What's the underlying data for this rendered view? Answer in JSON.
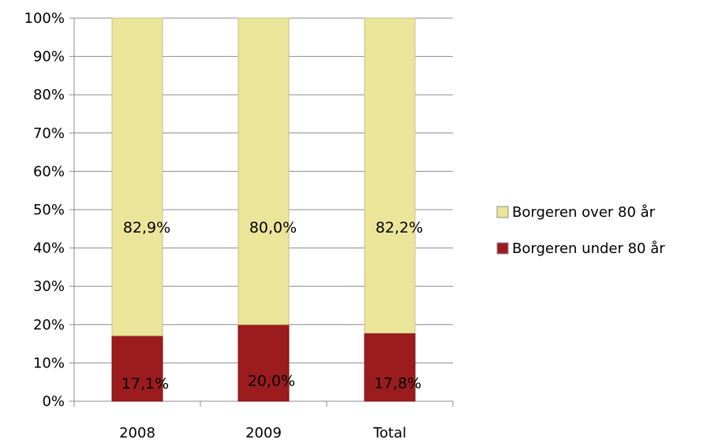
{
  "chart_data": {
    "type": "bar",
    "stacked": true,
    "percent": true,
    "categories": [
      "2008",
      "2009",
      "Total"
    ],
    "series": [
      {
        "name": "Borgeren under 80 år",
        "values": [
          17.1,
          20.0,
          17.8
        ],
        "labels": [
          "17,1%",
          "20,0%",
          "17,8%"
        ],
        "color": "#9B1B1E"
      },
      {
        "name": "Borgeren over 80 år",
        "values": [
          82.9,
          80.0,
          82.2
        ],
        "labels": [
          "82,9%",
          "80,0%",
          "82,2%"
        ],
        "color": "#EBE59A"
      }
    ],
    "title": "",
    "xlabel": "",
    "ylabel": "",
    "ylim": [
      0,
      100
    ],
    "yticks": [
      "0%",
      "10%",
      "20%",
      "30%",
      "40%",
      "50%",
      "60%",
      "70%",
      "80%",
      "90%",
      "100%"
    ],
    "grid": true,
    "legend_position": "right",
    "legend_order": [
      "Borgeren over 80 år",
      "Borgeren under 80 år"
    ]
  }
}
